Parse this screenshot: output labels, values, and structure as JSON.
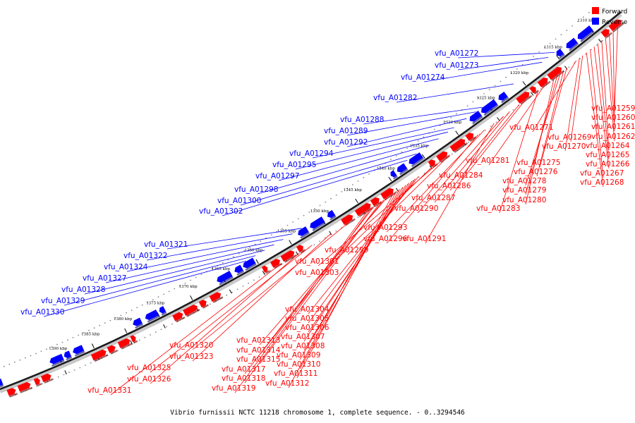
{
  "caption": "Vibrio furnissii NCTC 11218 chromosome 1, complete sequence. - 0..3294546",
  "legend": [
    {
      "label": "Forward",
      "color": "#ff0000"
    },
    {
      "label": "Reverse",
      "color": "#0000ff"
    }
  ],
  "colors": {
    "forward": "#ff0000",
    "reverse": "#0000ff",
    "backbone": "#1a1a1a"
  },
  "ticks": [
    "1310 kbp",
    "1315 kbp",
    "1320 kbp",
    "1325 kbp",
    "1330 kbp",
    "1335 kbp",
    "1340 kbp",
    "1345 kbp",
    "1350 kbp",
    "1355 kbp",
    "1360 kbp",
    "1365 kbp",
    "1370 kbp",
    "1375 kbp",
    "1380 kbp",
    "1385 kbp",
    "1390 kbp"
  ],
  "reverse_labels": [
    "vfu_A01272",
    "vfu_A01273",
    "vfu_A01274",
    "vfu_A01282",
    "vfu_A01288",
    "vfu_A01289",
    "vfu_A01292",
    "vfu_A01294",
    "vfu_A01295",
    "vfu_A01297",
    "vfu_A01298",
    "vfu_A01300",
    "vfu_A01302",
    "vfu_A01321",
    "vfu_A01322",
    "vfu_A01324",
    "vfu_A01327",
    "vfu_A01328",
    "vfu_A01329",
    "vfu_A01330"
  ],
  "forward_labels": [
    "vfu_A01259",
    "vfu_A01260",
    "vfu_A01261",
    "vfu_A01262",
    "vfu_A01264",
    "vfu_A01265",
    "vfu_A01266",
    "vfu_A01267",
    "vfu_A01268",
    "vfu_A01269",
    "vfu_A01270",
    "vfu_A01271",
    "vfu_A01275",
    "vfu_A01276",
    "vfu_A01278",
    "vfu_A01279",
    "vfu_A01280",
    "vfu_A01281",
    "vfu_A01283",
    "vfu_A01284",
    "vfu_A01286",
    "vfu_A01287",
    "vfu_A01290",
    "vfu_A01291",
    "vfu_A01293",
    "vfu_A01296",
    "vfu_A01299",
    "vfu_A01301",
    "vfu_A01303",
    "vfu_A01304",
    "vfu_A01305",
    "vfu_A01306",
    "vfu_A01307",
    "vfu_A01308",
    "vfu_A01309",
    "vfu_A01310",
    "vfu_A01311",
    "vfu_A01312",
    "vfu_A01313",
    "vfu_A01314",
    "vfu_A01315",
    "vfu_A01317",
    "vfu_A01318",
    "vfu_A01319",
    "vfu_A01320",
    "vfu_A01323",
    "vfu_A01325",
    "vfu_A01326",
    "vfu_A01331"
  ]
}
